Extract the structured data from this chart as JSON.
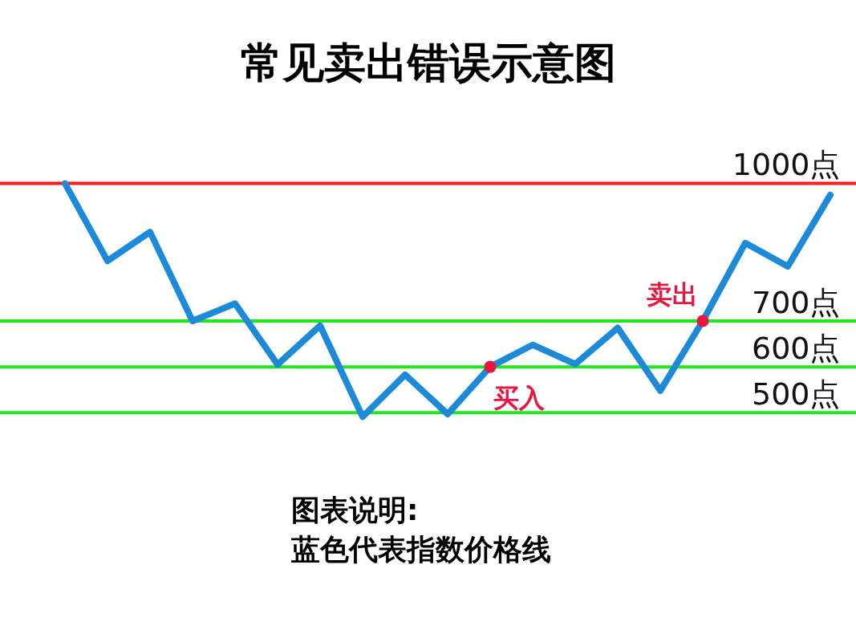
{
  "chart_data": {
    "type": "line",
    "title": "常见卖出错误示意图",
    "categories": [
      null,
      null,
      null,
      null,
      null,
      null,
      null,
      null,
      null,
      null,
      null,
      null,
      null,
      null,
      null,
      null,
      null,
      null,
      null
    ],
    "series": [
      {
        "color": "#1c8ad8",
        "values": [
          1000,
          831,
          894,
          700,
          738,
          605,
          690,
          491,
          583,
          497,
          600,
          648,
          606,
          685,
          548,
          700,
          870,
          819,
          975
        ]
      },
      {
        "type": "scatter",
        "color": "#e8173f",
        "marker": "circle",
        "values": [
          null,
          null,
          null,
          null,
          null,
          null,
          null,
          null,
          null,
          null,
          600,
          null,
          null,
          null,
          null,
          700,
          null,
          null,
          null
        ],
        "value_labels": [
          null,
          null,
          null,
          null,
          null,
          null,
          null,
          null,
          null,
          null,
          "买入",
          null,
          null,
          null,
          null,
          "卖出",
          null,
          null,
          null
        ]
      }
    ],
    "ylim": [
      0,
      1400
    ],
    "yticks": [
      {
        "value": 1000,
        "label": "1000点"
      },
      {
        "value": 700,
        "label": "700点"
      },
      {
        "value": 600,
        "label": "600点"
      },
      {
        "value": 500,
        "label": "500点"
      }
    ],
    "tick_labels": "y",
    "line_style": "solid",
    "ref_lines": [
      {
        "axis": "y",
        "value": 1000,
        "color": "#ff1a1a"
      },
      {
        "axis": "y",
        "value": 700,
        "color": "#22e622"
      },
      {
        "axis": "y",
        "value": 600,
        "color": "#22e622"
      },
      {
        "axis": "y",
        "value": 500,
        "color": "#22e622"
      }
    ],
    "annotations": [
      "图表说明:",
      "蓝色代表指数价格线"
    ]
  }
}
